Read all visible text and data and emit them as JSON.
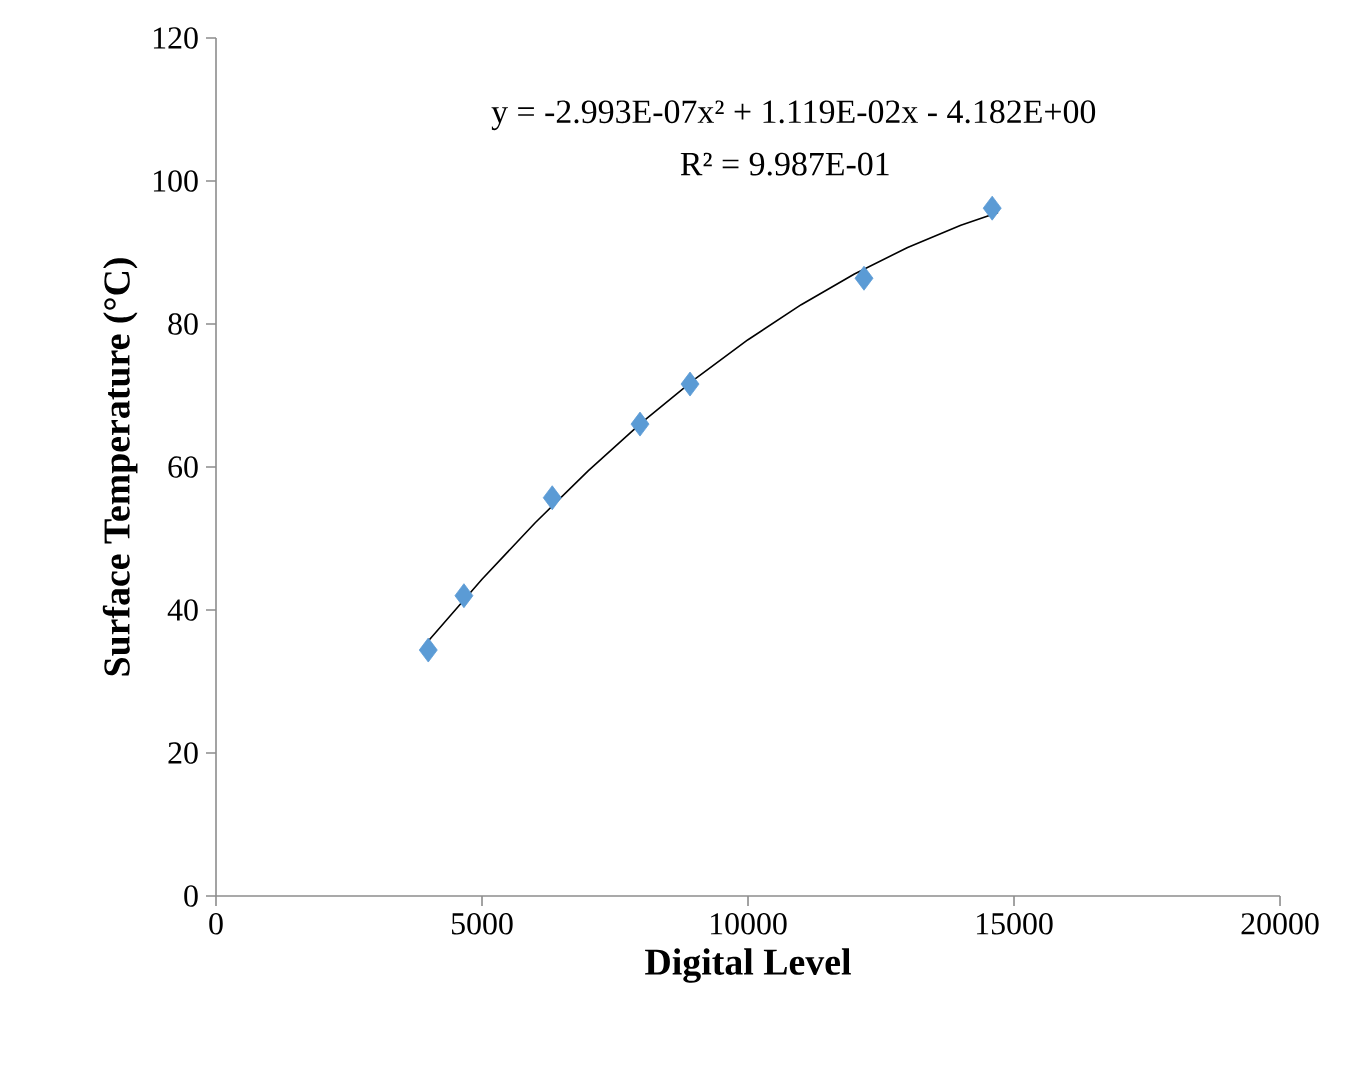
{
  "chart_data": {
    "type": "scatter",
    "xlabel": "Digital Level",
    "ylabel": "Surface Temperature (°C)",
    "annotations": [
      "y = -2.993E-07x² + 1.119E-02x - 4.182E+00",
      "R² = 9.987E-01"
    ],
    "xlim": [
      0,
      20000
    ],
    "ylim": [
      0,
      120
    ],
    "xticks": [
      0,
      5000,
      10000,
      15000,
      20000
    ],
    "yticks": [
      0,
      20,
      40,
      60,
      80,
      100,
      120
    ],
    "grid": false,
    "series": [
      {
        "color": "#5b9bd5",
        "marker": "diamond",
        "x": [
          3990,
          4660,
          6320,
          7970,
          8910,
          12180,
          14590
        ],
        "values": [
          34.4,
          42.0,
          55.7,
          66.0,
          71.6,
          86.4,
          96.2
        ]
      },
      {
        "type": "line",
        "color": "#000000",
        "marker": "none",
        "line_style": "solid",
        "x": [
          3900,
          5000,
          6000,
          7000,
          8000,
          9000,
          10000,
          11000,
          12000,
          13000,
          14000,
          14700
        ],
        "values": [
          34.9,
          44.3,
          52.2,
          59.5,
          66.2,
          72.3,
          77.8,
          82.7,
          87.0,
          90.7,
          93.8,
          95.6
        ]
      }
    ]
  }
}
